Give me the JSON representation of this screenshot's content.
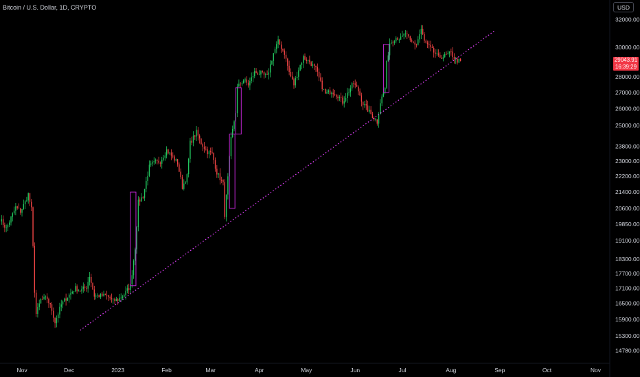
{
  "header": {
    "title": "Bitcoin / U.S. Dollar, 1D, CRYPTO",
    "currency_label": "USD"
  },
  "price_tag": {
    "price": "29043.91",
    "countdown": "16:39:29",
    "color": "#f23645"
  },
  "colors": {
    "up": "#22c55e",
    "down": "#ef4444",
    "trendline": "#e040fb",
    "weekly_box": "#c026d3"
  },
  "chart_data": {
    "type": "candlestick",
    "title": "Bitcoin / U.S. Dollar, 1D, CRYPTO",
    "y_scale": "log",
    "ylim": [
      14350,
      33500
    ],
    "xlim": [
      "2022-10-18",
      "2023-11-10"
    ],
    "y_ticks": [
      "32000.00",
      "30000.00",
      "28000.00",
      "27000.00",
      "26000.00",
      "25000.00",
      "23800.00",
      "23000.00",
      "22200.00",
      "21400.00",
      "20600.00",
      "19850.00",
      "19100.00",
      "18300.00",
      "17700.00",
      "17100.00",
      "16500.00",
      "15900.00",
      "15300.00",
      "14780.00"
    ],
    "x_ticks": [
      {
        "label": "Nov",
        "date": "2022-11-01"
      },
      {
        "label": "Dec",
        "date": "2022-12-01"
      },
      {
        "label": "2023",
        "date": "2023-01-01"
      },
      {
        "label": "Feb",
        "date": "2023-02-01"
      },
      {
        "label": "Mar",
        "date": "2023-03-01"
      },
      {
        "label": "Apr",
        "date": "2023-04-01"
      },
      {
        "label": "May",
        "date": "2023-05-01"
      },
      {
        "label": "Jun",
        "date": "2023-06-01"
      },
      {
        "label": "Jul",
        "date": "2023-07-01"
      },
      {
        "label": "Aug",
        "date": "2023-08-01"
      },
      {
        "label": "Sep",
        "date": "2023-09-01"
      },
      {
        "label": "Oct",
        "date": "2023-10-01"
      },
      {
        "label": "Nov",
        "date": "2023-11-01"
      }
    ],
    "series_close": [
      [
        "2022-10-18",
        20100
      ],
      [
        "2022-10-22",
        19650
      ],
      [
        "2022-10-26",
        20300
      ],
      [
        "2022-10-28",
        20650
      ],
      [
        "2022-10-31",
        20450
      ],
      [
        "2022-11-03",
        20900
      ],
      [
        "2022-11-05",
        21300
      ],
      [
        "2022-11-07",
        20550
      ],
      [
        "2022-11-08",
        18800
      ],
      [
        "2022-11-09",
        17000
      ],
      [
        "2022-11-10",
        16100
      ],
      [
        "2022-11-13",
        16650
      ],
      [
        "2022-11-17",
        16700
      ],
      [
        "2022-11-20",
        16250
      ],
      [
        "2022-11-22",
        15800
      ],
      [
        "2022-11-26",
        16450
      ],
      [
        "2022-11-29",
        16700
      ],
      [
        "2022-12-02",
        16900
      ],
      [
        "2022-12-05",
        17100
      ],
      [
        "2022-12-08",
        17000
      ],
      [
        "2022-12-12",
        17150
      ],
      [
        "2022-12-14",
        17600
      ],
      [
        "2022-12-17",
        16800
      ],
      [
        "2022-12-20",
        16800
      ],
      [
        "2022-12-25",
        16800
      ],
      [
        "2022-12-29",
        16600
      ],
      [
        "2023-01-01",
        16650
      ],
      [
        "2023-01-05",
        16850
      ],
      [
        "2023-01-09",
        17200
      ],
      [
        "2023-01-12",
        18800
      ],
      [
        "2023-01-14",
        20900
      ],
      [
        "2023-01-17",
        21200
      ],
      [
        "2023-01-21",
        22700
      ],
      [
        "2023-01-24",
        22900
      ],
      [
        "2023-01-28",
        23000
      ],
      [
        "2023-02-01",
        23600
      ],
      [
        "2023-02-04",
        23300
      ],
      [
        "2023-02-08",
        22900
      ],
      [
        "2023-02-11",
        21650
      ],
      [
        "2023-02-14",
        22200
      ],
      [
        "2023-02-16",
        24000
      ],
      [
        "2023-02-20",
        24600
      ],
      [
        "2023-02-23",
        24000
      ],
      [
        "2023-02-27",
        23500
      ],
      [
        "2023-03-02",
        23400
      ],
      [
        "2023-03-05",
        22400
      ],
      [
        "2023-03-09",
        21800
      ],
      [
        "2023-03-10",
        20300
      ],
      [
        "2023-03-12",
        22100
      ],
      [
        "2023-03-14",
        24200
      ],
      [
        "2023-03-17",
        25800
      ],
      [
        "2023-03-18",
        27300
      ],
      [
        "2023-03-22",
        27800
      ],
      [
        "2023-03-25",
        27500
      ],
      [
        "2023-03-29",
        28300
      ],
      [
        "2023-04-02",
        28200
      ],
      [
        "2023-04-06",
        28000
      ],
      [
        "2023-04-10",
        29600
      ],
      [
        "2023-04-13",
        30400
      ],
      [
        "2023-04-17",
        29600
      ],
      [
        "2023-04-20",
        28300
      ],
      [
        "2023-04-23",
        27500
      ],
      [
        "2023-04-26",
        28500
      ],
      [
        "2023-04-29",
        29300
      ],
      [
        "2023-05-03",
        29000
      ],
      [
        "2023-05-07",
        28500
      ],
      [
        "2023-05-10",
        27600
      ],
      [
        "2023-05-13",
        26900
      ],
      [
        "2023-05-17",
        27100
      ],
      [
        "2023-05-21",
        26800
      ],
      [
        "2023-05-24",
        26400
      ],
      [
        "2023-05-28",
        27100
      ],
      [
        "2023-05-31",
        27600
      ],
      [
        "2023-06-03",
        27100
      ],
      [
        "2023-06-06",
        26300
      ],
      [
        "2023-06-10",
        25800
      ],
      [
        "2023-06-15",
        25200
      ],
      [
        "2023-06-17",
        26400
      ],
      [
        "2023-06-20",
        27300
      ],
      [
        "2023-06-21",
        28900
      ],
      [
        "2023-06-23",
        30300
      ],
      [
        "2023-06-27",
        30700
      ],
      [
        "2023-06-30",
        30600
      ],
      [
        "2023-07-03",
        31000
      ],
      [
        "2023-07-06",
        30400
      ],
      [
        "2023-07-10",
        30200
      ],
      [
        "2023-07-13",
        31300
      ],
      [
        "2023-07-15",
        30400
      ],
      [
        "2023-07-19",
        29900
      ],
      [
        "2023-07-24",
        29300
      ],
      [
        "2023-07-28",
        29400
      ],
      [
        "2023-08-01",
        29600
      ],
      [
        "2023-08-04",
        29100
      ],
      [
        "2023-08-07",
        29044
      ]
    ],
    "weekly_boxes": [
      [
        "2023-01-09",
        17200,
        21400
      ],
      [
        "2023-03-13",
        20600,
        24500
      ],
      [
        "2023-03-17",
        24500,
        27300
      ],
      [
        "2023-06-19",
        27000,
        30200
      ]
    ],
    "trendline": {
      "start": [
        "2022-12-08",
        15500
      ],
      "end": [
        "2023-08-29",
        31200
      ],
      "style": "dotted"
    },
    "last_price": 29043.91
  }
}
